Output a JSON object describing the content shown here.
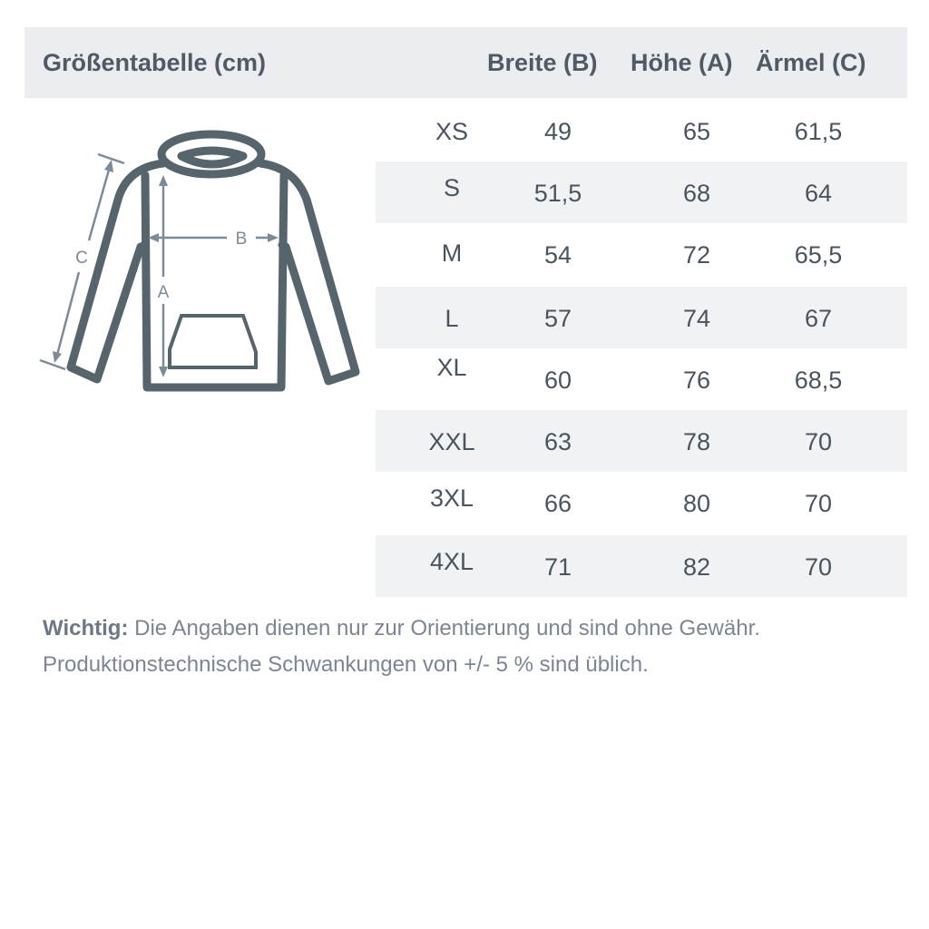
{
  "header": {
    "title": "Größentabelle (cm)",
    "columns": [
      "Breite (B)",
      "Höhe (A)",
      "Ärmel (C)"
    ]
  },
  "illustration": {
    "icon": "hoodie-icon",
    "labels": {
      "b": "B",
      "a": "A",
      "c": "C"
    },
    "stroke_color": "#56646b",
    "arrow_color": "#7d8b97"
  },
  "rows": [
    {
      "size": "XS",
      "breite": "49",
      "hoehe": "65",
      "aermel": "61,5"
    },
    {
      "size": "S",
      "breite": "51,5",
      "hoehe": "68",
      "aermel": "64"
    },
    {
      "size": "M",
      "breite": "54",
      "hoehe": "72",
      "aermel": "65,5"
    },
    {
      "size": "L",
      "breite": "57",
      "hoehe": "74",
      "aermel": "67"
    },
    {
      "size": "XL",
      "breite": "60",
      "hoehe": "76",
      "aermel": "68,5"
    },
    {
      "size": "XXL",
      "breite": "63",
      "hoehe": "78",
      "aermel": "70"
    },
    {
      "size": "3XL",
      "breite": "66",
      "hoehe": "80",
      "aermel": "70"
    },
    {
      "size": "4XL",
      "breite": "71",
      "hoehe": "82",
      "aermel": "70"
    }
  ],
  "note": {
    "label": "Wichtig:",
    "line1": " Die Angaben dienen nur zur Orientierung und sind ohne Gewähr.",
    "line2": "Produktionstechnische Schwankungen von +/- 5 % sind üblich."
  }
}
